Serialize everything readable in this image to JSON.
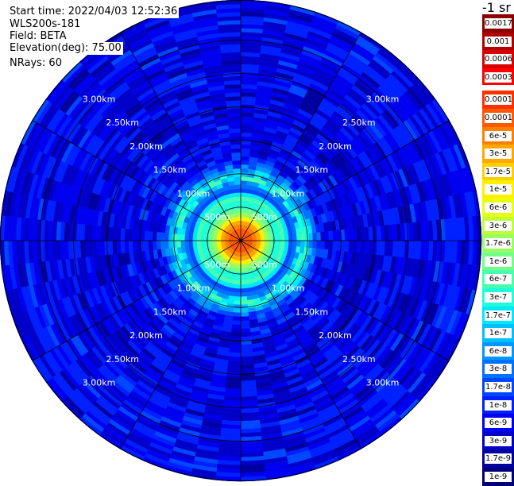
{
  "info": {
    "start_time": "Start time: 2022/04/03 12:52:36",
    "instrument": "WLS200s-181",
    "field": "Field: BETA",
    "elevation": "Elevation(deg): 75.00",
    "nrays": "NRays: 60"
  },
  "chart_data": {
    "type": "heatmap",
    "projection": "polar",
    "title": "",
    "field": "BETA",
    "elevation_deg": 75.0,
    "n_rays": 60,
    "range_rings_km": [
      0.5,
      1.0,
      1.5,
      2.0,
      2.5,
      3.0
    ],
    "ring_labels": [
      "500m",
      "1.00km",
      "1.50km",
      "2.00km",
      "2.50km",
      "3.00km"
    ],
    "max_range_km": 3.6,
    "grid": true,
    "radial_profile": [
      {
        "range_km": 0.1,
        "beta": 0.0001
      },
      {
        "range_km": 0.25,
        "beta": 6e-05
      },
      {
        "range_km": 0.4,
        "beta": 1.7e-06
      },
      {
        "range_km": 0.55,
        "beta": 1.7e-07
      },
      {
        "range_km": 0.65,
        "beta": 1e-06
      },
      {
        "range_km": 0.75,
        "beta": 1.7e-08
      },
      {
        "range_km": 0.95,
        "beta": 3e-07
      },
      {
        "range_km": 1.2,
        "beta": 6e-09
      },
      {
        "range_km": 2.0,
        "beta": 4e-09
      },
      {
        "range_km": 3.0,
        "beta": 5e-09
      }
    ]
  },
  "colorbar": {
    "title": "-1 sr",
    "labels": [
      "0.0017",
      "0.001",
      "0.0006",
      "0.0003",
      "0.00017",
      "0.0001",
      "6e-5",
      "3e-5",
      "1.7e-5",
      "1e-5",
      "6e-6",
      "3e-6",
      "1.7e-6",
      "1e-6",
      "6e-7",
      "3e-7",
      "1.7e-7",
      "1e-7",
      "6e-8",
      "3e-8",
      "1.7e-8",
      "1e-8",
      "6e-9",
      "3e-9",
      "1.7e-9",
      "1e-9"
    ],
    "colors": [
      "#8b0000",
      "#b00000",
      "#d80000",
      "#ff0000",
      "#ff3000",
      "#ff5800",
      "#ff8000",
      "#ffa800",
      "#ffd000",
      "#fff000",
      "#e8ff10",
      "#c0ff38",
      "#98ff60",
      "#70ff88",
      "#48ffb0",
      "#20ffd8",
      "#00e8ff",
      "#00c0ff",
      "#0098ff",
      "#0070ff",
      "#0048ff",
      "#0020ff",
      "#0000f0",
      "#0000c8",
      "#0000a0",
      "#000078"
    ],
    "gap_after_index": 3
  }
}
